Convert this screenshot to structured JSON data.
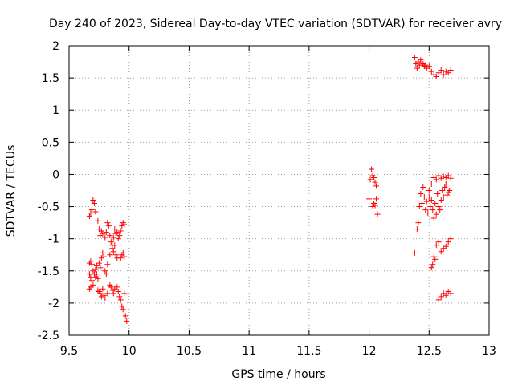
{
  "chart_data": {
    "type": "scatter",
    "title": "Day 240 of 2023, Sidereal Day-to-day VTEC variation (SDTVAR) for receiver avry",
    "xlabel": "GPS time / hours",
    "ylabel": "SDTVAR / TECUs",
    "xlim": [
      9.5,
      13
    ],
    "ylim": [
      -2.5,
      2
    ],
    "x_ticks": [
      "9.5",
      "10",
      "10.5",
      "11",
      "11.5",
      "12",
      "12.5",
      "13"
    ],
    "y_ticks": [
      "-2.5",
      "-2",
      "-1.5",
      "-1",
      "-0.5",
      "0",
      "0.5",
      "1",
      "1.5",
      "2"
    ],
    "grid": true,
    "marker": "+",
    "marker_color": "#ff0000",
    "series": [
      {
        "name": "SDTVAR",
        "points": [
          [
            9.67,
            -0.65
          ],
          [
            9.68,
            -0.6
          ],
          [
            9.69,
            -0.55
          ],
          [
            9.7,
            -0.4
          ],
          [
            9.71,
            -0.45
          ],
          [
            9.72,
            -0.58
          ],
          [
            9.74,
            -0.72
          ],
          [
            9.75,
            -0.85
          ],
          [
            9.76,
            -0.95
          ],
          [
            9.77,
            -0.88
          ],
          [
            9.78,
            -0.92
          ],
          [
            9.8,
            -0.98
          ],
          [
            9.81,
            -0.9
          ],
          [
            9.82,
            -0.75
          ],
          [
            9.83,
            -0.8
          ],
          [
            9.84,
            -0.95
          ],
          [
            9.85,
            -1.05
          ],
          [
            9.86,
            -1.1
          ],
          [
            9.87,
            -0.98
          ],
          [
            9.88,
            -0.85
          ],
          [
            9.89,
            -0.92
          ],
          [
            9.9,
            -0.9
          ],
          [
            9.91,
            -1.0
          ],
          [
            9.92,
            -0.95
          ],
          [
            9.93,
            -0.88
          ],
          [
            9.94,
            -0.8
          ],
          [
            9.95,
            -0.75
          ],
          [
            9.96,
            -0.78
          ],
          [
            9.93,
            -1.3
          ],
          [
            9.94,
            -1.25
          ],
          [
            9.95,
            -1.22
          ],
          [
            9.96,
            -1.28
          ],
          [
            9.67,
            -1.38
          ],
          [
            9.68,
            -1.35
          ],
          [
            9.69,
            -1.4
          ],
          [
            9.7,
            -1.5
          ],
          [
            9.71,
            -1.55
          ],
          [
            9.72,
            -1.48
          ],
          [
            9.73,
            -1.42
          ],
          [
            9.75,
            -1.38
          ],
          [
            9.76,
            -1.45
          ],
          [
            9.77,
            -1.3
          ],
          [
            9.78,
            -1.22
          ],
          [
            9.79,
            -1.28
          ],
          [
            9.8,
            -1.5
          ],
          [
            9.81,
            -1.55
          ],
          [
            9.82,
            -1.4
          ],
          [
            9.84,
            -1.25
          ],
          [
            9.86,
            -1.15
          ],
          [
            9.87,
            -1.2
          ],
          [
            9.88,
            -1.1
          ],
          [
            9.89,
            -1.25
          ],
          [
            9.9,
            -1.3
          ],
          [
            9.67,
            -1.55
          ],
          [
            9.68,
            -1.6
          ],
          [
            9.69,
            -1.65
          ],
          [
            9.7,
            -1.72
          ],
          [
            9.72,
            -1.6
          ],
          [
            9.73,
            -1.55
          ],
          [
            9.74,
            -1.62
          ],
          [
            9.67,
            -1.78
          ],
          [
            9.68,
            -1.75
          ],
          [
            9.74,
            -1.8
          ],
          [
            9.75,
            -1.82
          ],
          [
            9.76,
            -1.85
          ],
          [
            9.77,
            -1.9
          ],
          [
            9.78,
            -1.78
          ],
          [
            9.79,
            -1.88
          ],
          [
            9.8,
            -1.92
          ],
          [
            9.82,
            -1.85
          ],
          [
            9.84,
            -1.72
          ],
          [
            9.85,
            -1.75
          ],
          [
            9.86,
            -1.8
          ],
          [
            9.87,
            -1.85
          ],
          [
            9.88,
            -1.78
          ],
          [
            9.9,
            -1.75
          ],
          [
            9.91,
            -1.82
          ],
          [
            9.92,
            -1.9
          ],
          [
            9.93,
            -1.95
          ],
          [
            9.94,
            -2.05
          ],
          [
            9.95,
            -2.1
          ],
          [
            9.96,
            -1.85
          ],
          [
            9.97,
            -2.2
          ],
          [
            9.98,
            -2.28
          ],
          [
            12.0,
            -0.38
          ],
          [
            12.01,
            -0.08
          ],
          [
            12.02,
            0.08
          ],
          [
            12.03,
            -0.02
          ],
          [
            12.04,
            -0.05
          ],
          [
            12.05,
            -0.12
          ],
          [
            12.06,
            -0.18
          ],
          [
            12.03,
            -0.5
          ],
          [
            12.04,
            -0.45
          ],
          [
            12.05,
            -0.48
          ],
          [
            12.06,
            -0.38
          ],
          [
            12.07,
            -0.62
          ],
          [
            12.38,
            1.82
          ],
          [
            12.39,
            1.72
          ],
          [
            12.4,
            1.65
          ],
          [
            12.41,
            1.75
          ],
          [
            12.42,
            1.7
          ],
          [
            12.43,
            1.78
          ],
          [
            12.44,
            1.7
          ],
          [
            12.45,
            1.72
          ],
          [
            12.46,
            1.68
          ],
          [
            12.47,
            1.7
          ],
          [
            12.48,
            1.65
          ],
          [
            12.5,
            1.68
          ],
          [
            12.52,
            1.6
          ],
          [
            12.54,
            1.55
          ],
          [
            12.56,
            1.52
          ],
          [
            12.58,
            1.58
          ],
          [
            12.6,
            1.62
          ],
          [
            12.62,
            1.55
          ],
          [
            12.64,
            1.6
          ],
          [
            12.66,
            1.58
          ],
          [
            12.68,
            1.62
          ],
          [
            12.38,
            -1.22
          ],
          [
            12.4,
            -0.85
          ],
          [
            12.41,
            -0.75
          ],
          [
            12.42,
            -0.5
          ],
          [
            12.43,
            -0.3
          ],
          [
            12.44,
            -0.45
          ],
          [
            12.45,
            -0.2
          ],
          [
            12.46,
            -0.35
          ],
          [
            12.47,
            -0.55
          ],
          [
            12.48,
            -0.42
          ],
          [
            12.49,
            -0.6
          ],
          [
            12.5,
            -0.35
          ],
          [
            12.51,
            -0.5
          ],
          [
            12.52,
            -0.4
          ],
          [
            12.53,
            -0.55
          ],
          [
            12.54,
            -0.68
          ],
          [
            12.55,
            -0.45
          ],
          [
            12.56,
            -0.62
          ],
          [
            12.57,
            -0.3
          ],
          [
            12.58,
            -0.5
          ],
          [
            12.59,
            -0.55
          ],
          [
            12.6,
            -0.4
          ],
          [
            12.61,
            -0.25
          ],
          [
            12.62,
            -0.35
          ],
          [
            12.63,
            -0.2
          ],
          [
            12.64,
            -0.15
          ],
          [
            12.65,
            -0.32
          ],
          [
            12.66,
            -0.28
          ],
          [
            12.67,
            -0.25
          ],
          [
            12.5,
            -0.25
          ],
          [
            12.52,
            -0.15
          ],
          [
            12.54,
            -0.05
          ],
          [
            12.56,
            -0.08
          ],
          [
            12.58,
            -0.02
          ],
          [
            12.6,
            -0.06
          ],
          [
            12.62,
            -0.03
          ],
          [
            12.64,
            -0.05
          ],
          [
            12.66,
            -0.02
          ],
          [
            12.68,
            -0.06
          ],
          [
            12.52,
            -1.45
          ],
          [
            12.53,
            -1.4
          ],
          [
            12.54,
            -1.28
          ],
          [
            12.55,
            -1.32
          ],
          [
            12.56,
            -1.1
          ],
          [
            12.58,
            -1.05
          ],
          [
            12.6,
            -1.2
          ],
          [
            12.62,
            -1.15
          ],
          [
            12.64,
            -1.12
          ],
          [
            12.66,
            -1.05
          ],
          [
            12.68,
            -1.0
          ],
          [
            12.58,
            -1.95
          ],
          [
            12.6,
            -1.9
          ],
          [
            12.62,
            -1.85
          ],
          [
            12.64,
            -1.88
          ],
          [
            12.66,
            -1.82
          ],
          [
            12.68,
            -1.85
          ]
        ]
      }
    ]
  }
}
